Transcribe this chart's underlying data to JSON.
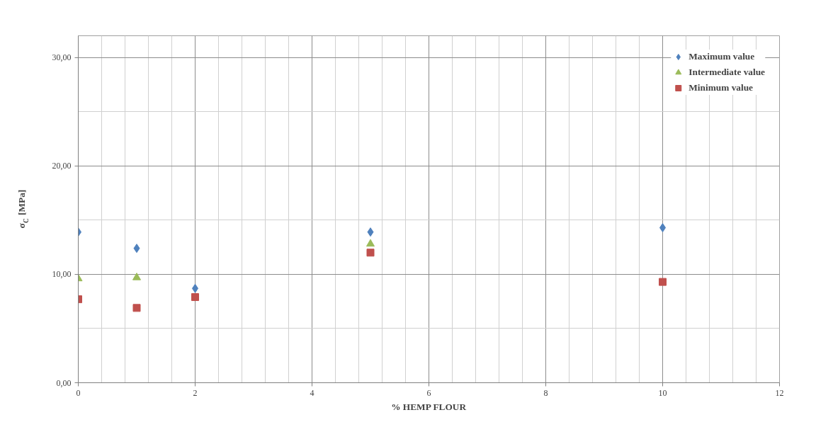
{
  "chart_data": {
    "type": "scatter",
    "xlabel": "% HEMP FLOUR",
    "ylabel": "σ$_{C}$ [MPa]",
    "x": [
      0,
      1,
      2,
      5,
      10
    ],
    "series": [
      {
        "name": "Maximum value",
        "color": "#4f81bd",
        "marker": "diamond",
        "values": [
          13.9,
          12.4,
          8.7,
          13.9,
          14.3
        ]
      },
      {
        "name": "Intermediate value",
        "color": "#9bbb59",
        "marker": "triangle",
        "values": [
          9.6,
          9.7,
          null,
          12.8,
          null
        ]
      },
      {
        "name": "Minimum value",
        "color": "#c0504d",
        "marker": "square",
        "values": [
          7.7,
          6.9,
          7.9,
          12.0,
          9.3
        ]
      }
    ],
    "xlim": [
      0,
      12
    ],
    "xticks": [
      0,
      2,
      4,
      6,
      8,
      10,
      12
    ],
    "ylim": [
      0,
      32
    ],
    "yticks": [
      {
        "value": 0,
        "label": "0,00"
      },
      {
        "value": 10,
        "label": "10,00"
      },
      {
        "value": 20,
        "label": "20,00"
      },
      {
        "value": 30,
        "label": "30,00"
      }
    ],
    "grid": true,
    "legend": "top right"
  }
}
